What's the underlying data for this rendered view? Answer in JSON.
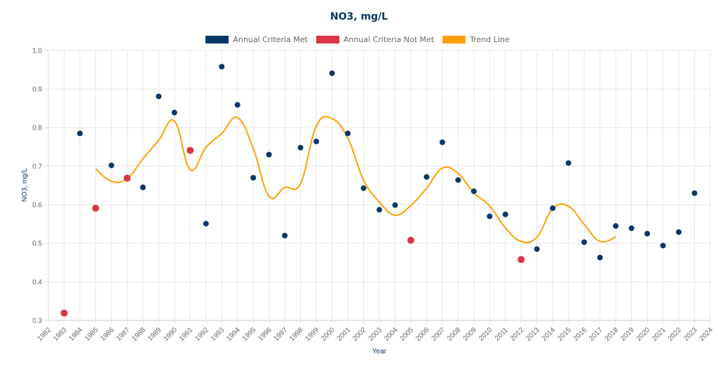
{
  "chart_data": {
    "type": "scatter",
    "title": "NO3, mg/L",
    "xlabel": "Year",
    "ylabel": "NO3, mg/L",
    "xlim": [
      1982,
      2024
    ],
    "ylim": [
      0.3,
      1.0
    ],
    "grid": true,
    "legend_position": "top-center",
    "x_ticks": [
      "1982",
      "1983",
      "1984",
      "1985",
      "1986",
      "1987",
      "1988",
      "1989",
      "1990",
      "1991",
      "1992",
      "1993",
      "1994",
      "1995",
      "1996",
      "1997",
      "1998",
      "1999",
      "2000",
      "2001",
      "2002",
      "2003",
      "2004",
      "2005",
      "2006",
      "2007",
      "2008",
      "2009",
      "2010",
      "2011",
      "2012",
      "2013",
      "2014",
      "2015",
      "2016",
      "2017",
      "2018",
      "2019",
      "2020",
      "2021",
      "2022",
      "2023",
      "2024"
    ],
    "y_ticks": [
      "0.3",
      "0.4",
      "0.5",
      "0.6",
      "0.7",
      "0.8",
      "0.9",
      "1.0"
    ],
    "legend": [
      {
        "label": "Annual Criteria Met",
        "color": "#0b3768"
      },
      {
        "label": "Annual Criteria Not Met",
        "color": "#dc3545"
      },
      {
        "label": "Trend Line",
        "color": "#ff9f00"
      }
    ],
    "series": [
      {
        "name": "Annual Criteria Met",
        "type": "scatter",
        "color": "#0b3768",
        "points": [
          [
            1984,
            0.785
          ],
          [
            1986,
            0.702
          ],
          [
            1988,
            0.645
          ],
          [
            1989,
            0.881
          ],
          [
            1990,
            0.839
          ],
          [
            1992,
            0.551
          ],
          [
            1993,
            0.958
          ],
          [
            1994,
            0.859
          ],
          [
            1995,
            0.67
          ],
          [
            1996,
            0.73
          ],
          [
            1997,
            0.52
          ],
          [
            1998,
            0.748
          ],
          [
            1999,
            0.764
          ],
          [
            2000,
            0.941
          ],
          [
            2001,
            0.785
          ],
          [
            2002,
            0.643
          ],
          [
            2003,
            0.587
          ],
          [
            2004,
            0.599
          ],
          [
            2006,
            0.672
          ],
          [
            2007,
            0.762
          ],
          [
            2008,
            0.664
          ],
          [
            2009,
            0.635
          ],
          [
            2010,
            0.57
          ],
          [
            2011,
            0.575
          ],
          [
            2013,
            0.485
          ],
          [
            2014,
            0.591
          ],
          [
            2015,
            0.708
          ],
          [
            2016,
            0.503
          ],
          [
            2017,
            0.463
          ],
          [
            2018,
            0.545
          ],
          [
            2019,
            0.539
          ],
          [
            2020,
            0.525
          ],
          [
            2021,
            0.494
          ],
          [
            2022,
            0.529
          ],
          [
            2023,
            0.63
          ]
        ]
      },
      {
        "name": "Annual Criteria Not Met",
        "type": "scatter",
        "color": "#dc3545",
        "points": [
          [
            1983,
            0.319
          ],
          [
            1985,
            0.591
          ],
          [
            1987,
            0.669
          ],
          [
            1991,
            0.741
          ],
          [
            2005,
            0.508
          ],
          [
            2012,
            0.458
          ]
        ]
      },
      {
        "name": "Trend Line",
        "type": "line",
        "color": "#ff9f00",
        "points": [
          [
            1985,
            0.693
          ],
          [
            1986,
            0.661
          ],
          [
            1987,
            0.668
          ],
          [
            1988,
            0.719
          ],
          [
            1989,
            0.767
          ],
          [
            1990,
            0.817
          ],
          [
            1991,
            0.691
          ],
          [
            1992,
            0.749
          ],
          [
            1993,
            0.785
          ],
          [
            1994,
            0.826
          ],
          [
            1995,
            0.746
          ],
          [
            1996,
            0.622
          ],
          [
            1997,
            0.645
          ],
          [
            1998,
            0.655
          ],
          [
            1999,
            0.804
          ],
          [
            2000,
            0.823
          ],
          [
            2001,
            0.773
          ],
          [
            2002,
            0.664
          ],
          [
            2003,
            0.607
          ],
          [
            2004,
            0.573
          ],
          [
            2005,
            0.598
          ],
          [
            2006,
            0.643
          ],
          [
            2007,
            0.695
          ],
          [
            2008,
            0.681
          ],
          [
            2009,
            0.631
          ],
          [
            2010,
            0.597
          ],
          [
            2011,
            0.54
          ],
          [
            2012,
            0.505
          ],
          [
            2013,
            0.516
          ],
          [
            2014,
            0.59
          ],
          [
            2015,
            0.596
          ],
          [
            2016,
            0.549
          ],
          [
            2017,
            0.505
          ],
          [
            2018,
            0.516
          ]
        ]
      }
    ]
  }
}
